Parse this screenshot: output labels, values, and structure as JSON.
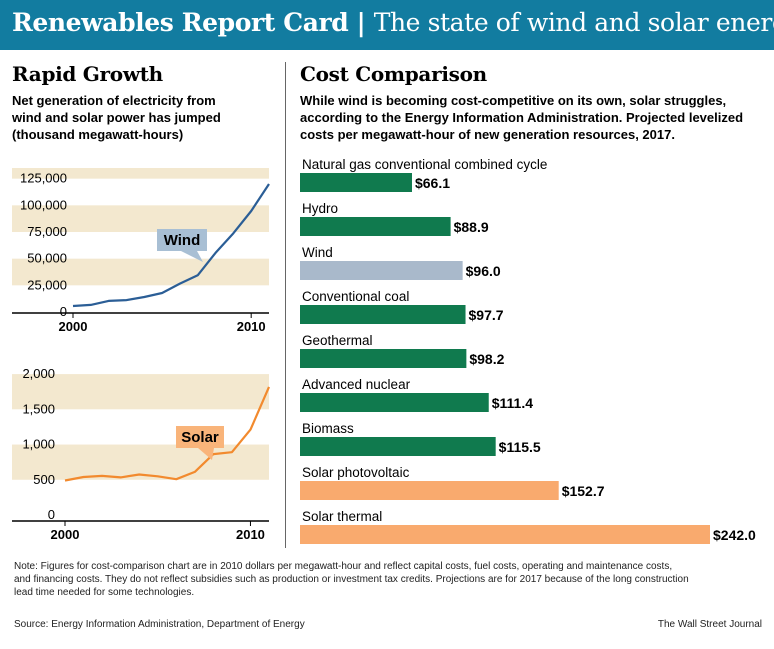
{
  "banner": {
    "title_main": "Renewables Report Card",
    "separator": "|",
    "title_sub": "The state of wind and solar energy"
  },
  "left": {
    "heading": "Rapid Growth",
    "description": [
      "Net generation of electricity from",
      "wind and solar power has jumped",
      "(thousand megawatt-hours)"
    ]
  },
  "right": {
    "heading": "Cost Comparison",
    "description": [
      "While wind is becoming cost-competitive on its own, solar struggles,",
      "according to the Energy Information Administration. Projected levelized",
      "costs per megawatt-hour of new generation resources, 2017."
    ]
  },
  "colors": {
    "banner": "#127ca0",
    "wind_line": "#2b5e96",
    "wind_label_bg": "#a8bfd4",
    "solar_line": "#f28a2e",
    "solar_label_bg": "#f9b47a",
    "band": "#f3e8cf",
    "bar_green": "#107a4e",
    "bar_wind": "#a9b9cb",
    "bar_solar": "#f9aa6e"
  },
  "chart_data": [
    {
      "type": "line",
      "series": [
        {
          "name": "Wind",
          "x": [
            2000,
            2001,
            2002,
            2003,
            2004,
            2005,
            2006,
            2007,
            2008,
            2009,
            2010,
            2011
          ],
          "values": [
            5600,
            6700,
            10400,
            11200,
            14100,
            17800,
            26600,
            34400,
            55400,
            73900,
            94700,
            120000
          ]
        }
      ],
      "x_ticks": [
        "2000",
        "2010"
      ],
      "y_ticks": [
        "0",
        "25,000",
        "50,000",
        "75,000",
        "100,000",
        "125,000"
      ],
      "ylim": [
        0,
        135000
      ]
    },
    {
      "type": "line",
      "series": [
        {
          "name": "Solar",
          "x": [
            2000,
            2001,
            2002,
            2003,
            2004,
            2005,
            2006,
            2007,
            2008,
            2009,
            2010,
            2011
          ],
          "values": [
            490,
            540,
            555,
            534,
            575,
            550,
            508,
            612,
            864,
            891,
            1212,
            1818
          ]
        }
      ],
      "x_ticks": [
        "2000",
        "2010"
      ],
      "y_ticks": [
        "0",
        "500",
        "1,000",
        "1,500",
        "2,000"
      ],
      "ylim": [
        0,
        2200
      ]
    },
    {
      "type": "bar",
      "categories": [
        "Natural gas conventional combined cycle",
        "Hydro",
        "Wind",
        "Conventional coal",
        "Geothermal",
        "Advanced nuclear",
        "Biomass",
        "Solar photovoltaic",
        "Solar thermal"
      ],
      "values": [
        66.1,
        88.9,
        96.0,
        97.7,
        98.2,
        111.4,
        115.5,
        152.7,
        242.0
      ],
      "value_labels": [
        "$66.1",
        "$88.9",
        "$96.0",
        "$97.7",
        "$98.2",
        "$111.4",
        "$115.5",
        "$152.7",
        "$242.0"
      ],
      "bar_colors": [
        "bar_green",
        "bar_green",
        "bar_wind",
        "bar_green",
        "bar_green",
        "bar_green",
        "bar_green",
        "bar_solar",
        "bar_solar"
      ]
    }
  ],
  "footer": {
    "note": [
      "Note: Figures for cost-comparison chart are in 2010 dollars per megawatt-hour and reflect capital costs, fuel costs, operating and maintenance costs,",
      "and financing costs. They do not reflect subsidies such as production or investment tax credits. Projections are for 2017 because of the long construction",
      "lead time needed for some technologies."
    ],
    "source": "Source: Energy Information Administration, Department of Energy",
    "credit": "The Wall Street Journal"
  }
}
